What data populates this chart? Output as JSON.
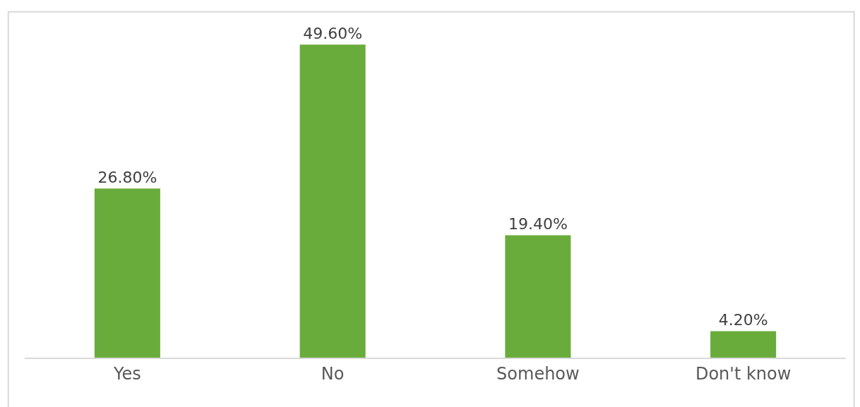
{
  "chart_data": {
    "type": "bar",
    "categories": [
      "Yes",
      "No",
      "Somehow",
      "Don't know"
    ],
    "values": [
      26.8,
      49.6,
      19.4,
      4.2
    ],
    "value_labels": [
      "26.80%",
      "49.60%",
      "19.40%",
      "4.20%"
    ],
    "color": "#6aac3c"
  }
}
